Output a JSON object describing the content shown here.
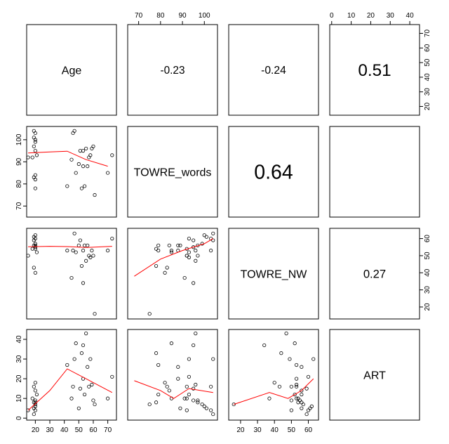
{
  "chart_data": {
    "type": "scatter",
    "variables": [
      "Age",
      "TOWRE_words",
      "TOWRE_NW",
      "ART"
    ],
    "ranges": {
      "Age": [
        14,
        76
      ],
      "TOWRE_words": [
        65,
        106
      ],
      "TOWRE_NW": [
        13,
        66
      ],
      "ART": [
        -1,
        45
      ]
    },
    "ticks": {
      "Age": [
        20,
        30,
        40,
        50,
        60,
        70
      ],
      "TOWRE_words": [
        70,
        80,
        90,
        100
      ],
      "TOWRE_NW": [
        20,
        30,
        40,
        50,
        60
      ],
      "ART": [
        0,
        10,
        20,
        30,
        40
      ]
    },
    "correlations": [
      {
        "row": 0,
        "col": 1,
        "value": "-0.23"
      },
      {
        "row": 0,
        "col": 2,
        "value": "-0.24"
      },
      {
        "row": 0,
        "col": 3,
        "value": "0.51"
      },
      {
        "row": 1,
        "col": 2,
        "value": "0.64"
      },
      {
        "row": 2,
        "col": 3,
        "value": "0.27"
      }
    ],
    "observations": [
      {
        "Age": 19,
        "TOWRE_words": 104,
        "TOWRE_NW": 59,
        "ART": 2
      },
      {
        "Age": 20,
        "TOWRE_words": 103,
        "TOWRE_NW": 60,
        "ART": 4
      },
      {
        "Age": 19,
        "TOWRE_words": 101,
        "TOWRE_NW": 61,
        "ART": 5
      },
      {
        "Age": 20,
        "TOWRE_words": 100,
        "TOWRE_NW": 62,
        "ART": 6
      },
      {
        "Age": 20,
        "TOWRE_words": 99,
        "TOWRE_NW": 57,
        "ART": 7
      },
      {
        "Age": 19,
        "TOWRE_words": 97,
        "TOWRE_NW": 56,
        "ART": 8
      },
      {
        "Age": 20,
        "TOWRE_words": 95,
        "TOWRE_NW": 55,
        "ART": 9
      },
      {
        "Age": 18,
        "TOWRE_words": 92,
        "TOWRE_NW": 54,
        "ART": 10
      },
      {
        "Age": 21,
        "TOWRE_words": 93,
        "TOWRE_NW": 52,
        "ART": 12
      },
      {
        "Age": 20,
        "TOWRE_words": 84,
        "TOWRE_NW": 56,
        "ART": 14
      },
      {
        "Age": 19,
        "TOWRE_words": 83,
        "TOWRE_NW": 43,
        "ART": 16
      },
      {
        "Age": 20,
        "TOWRE_words": 82,
        "TOWRE_NW": 40,
        "ART": 18
      },
      {
        "Age": 20,
        "TOWRE_words": 78,
        "TOWRE_NW": 54,
        "ART": 8
      },
      {
        "Age": 15,
        "TOWRE_words": 92,
        "TOWRE_NW": 50,
        "ART": 4
      },
      {
        "Age": 42,
        "TOWRE_words": 79,
        "TOWRE_NW": 53,
        "ART": 27
      },
      {
        "Age": 45,
        "TOWRE_words": 91,
        "TOWRE_NW": 37,
        "ART": 10
      },
      {
        "Age": 46,
        "TOWRE_words": 103,
        "TOWRE_NW": 53,
        "ART": 16
      },
      {
        "Age": 47,
        "TOWRE_words": 104,
        "TOWRE_NW": 63,
        "ART": 30
      },
      {
        "Age": 48,
        "TOWRE_words": 85,
        "TOWRE_NW": 52,
        "ART": 38
      },
      {
        "Age": 50,
        "TOWRE_words": 89,
        "TOWRE_NW": 56,
        "ART": 5
      },
      {
        "Age": 51,
        "TOWRE_words": 95,
        "TOWRE_NW": 59,
        "ART": 15
      },
      {
        "Age": 52,
        "TOWRE_words": 78,
        "TOWRE_NW": 44,
        "ART": 33
      },
      {
        "Age": 53,
        "TOWRE_words": 95,
        "TOWRE_NW": 34,
        "ART": 37
      },
      {
        "Age": 53,
        "TOWRE_words": 88,
        "TOWRE_NW": 53,
        "ART": 20
      },
      {
        "Age": 54,
        "TOWRE_words": 79,
        "TOWRE_NW": 56,
        "ART": 12
      },
      {
        "Age": 55,
        "TOWRE_words": 96,
        "TOWRE_NW": 47,
        "ART": 43
      },
      {
        "Age": 56,
        "TOWRE_words": 88,
        "TOWRE_NW": 56,
        "ART": 26
      },
      {
        "Age": 57,
        "TOWRE_words": 92,
        "TOWRE_NW": 50,
        "ART": 16
      },
      {
        "Age": 58,
        "TOWRE_words": 93,
        "TOWRE_NW": 49,
        "ART": 30
      },
      {
        "Age": 59,
        "TOWRE_words": 96,
        "TOWRE_NW": 53,
        "ART": 17
      },
      {
        "Age": 60,
        "TOWRE_words": 97,
        "TOWRE_NW": 50,
        "ART": 9
      },
      {
        "Age": 61,
        "TOWRE_words": 75,
        "TOWRE_NW": 16,
        "ART": 7
      },
      {
        "Age": 70,
        "TOWRE_words": 85,
        "TOWRE_NW": 53,
        "ART": 10
      },
      {
        "Age": 73,
        "TOWRE_words": 93,
        "TOWRE_NW": 60,
        "ART": 21
      }
    ],
    "smooth_curves": {
      "TOWRE_words~Age": [
        [
          15,
          94
        ],
        [
          30,
          94.5
        ],
        [
          42,
          94.8
        ],
        [
          55,
          91
        ],
        [
          70,
          88
        ]
      ],
      "TOWRE_NW~Age": [
        [
          15,
          55.2
        ],
        [
          30,
          55.5
        ],
        [
          42,
          55.3
        ],
        [
          55,
          54.8
        ],
        [
          73,
          55.5
        ]
      ],
      "ART~Age": [
        [
          15,
          4
        ],
        [
          30,
          14
        ],
        [
          42,
          25
        ],
        [
          55,
          20
        ],
        [
          73,
          13
        ]
      ],
      "TOWRE_NW~TOWRE_words": [
        [
          68,
          38
        ],
        [
          80,
          48
        ],
        [
          90,
          53
        ],
        [
          100,
          57
        ],
        [
          104,
          60
        ]
      ],
      "ART~TOWRE_words": [
        [
          68,
          19
        ],
        [
          80,
          14
        ],
        [
          86,
          10
        ],
        [
          93,
          15
        ],
        [
          104,
          13
        ]
      ],
      "ART~TOWRE_NW": [
        [
          16,
          7
        ],
        [
          37,
          13
        ],
        [
          48,
          10
        ],
        [
          56,
          14
        ],
        [
          63,
          20
        ]
      ]
    },
    "colors": {
      "points": "#000000",
      "smooth": "#ff0000"
    }
  }
}
